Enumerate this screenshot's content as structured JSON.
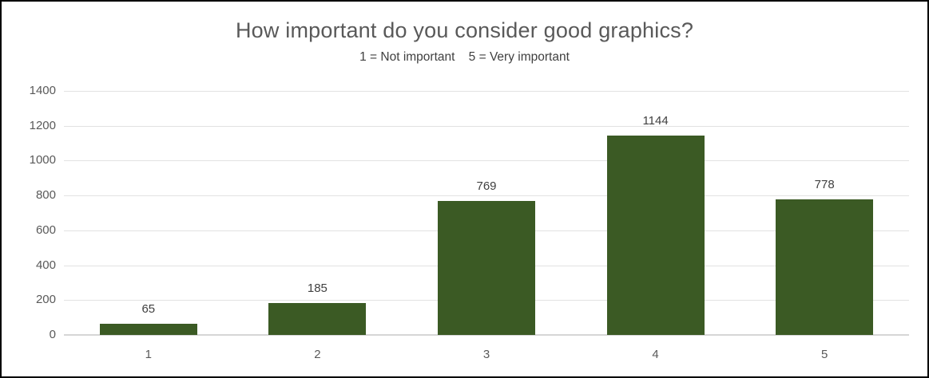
{
  "chart": {
    "title": "How important do you consider good graphics?",
    "subtitle": "1 = Not important    5 = Very important"
  },
  "chart_data": {
    "type": "bar",
    "title": "How important do you consider good graphics?",
    "subtitle": "1 = Not important    5 = Very important",
    "categories": [
      "1",
      "2",
      "3",
      "4",
      "5"
    ],
    "values": [
      65,
      185,
      769,
      1144,
      778
    ],
    "data_labels": [
      "65",
      "185",
      "769",
      "1144",
      "778"
    ],
    "xlabel": "",
    "ylabel": "",
    "ylim": [
      0,
      1400
    ],
    "ytick_step": 200,
    "ytick_labels": [
      "0",
      "200",
      "400",
      "600",
      "800",
      "1000",
      "1200",
      "1400"
    ],
    "grid": true,
    "legend": false,
    "bar_color": "#3b5a24",
    "gridline_color": "#e2e2e2",
    "axis_line_color": "#d6d6d6",
    "title_color": "#595959",
    "subtitle_color": "#404040",
    "tick_label_color": "#595959",
    "data_label_color": "#404040"
  }
}
